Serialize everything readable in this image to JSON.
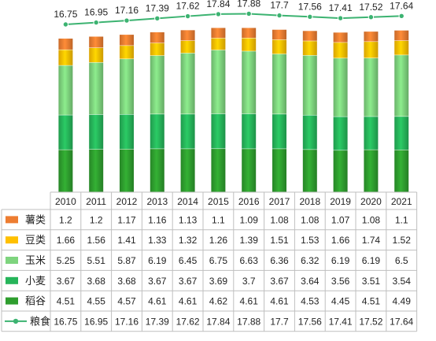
{
  "chart_data": {
    "type": "bar",
    "stacked": true,
    "categories": [
      "2010",
      "2011",
      "2012",
      "2013",
      "2014",
      "2015",
      "2016",
      "2017",
      "2018",
      "2019",
      "2020",
      "2021"
    ],
    "series": [
      {
        "name": "稻谷",
        "key": "rice",
        "color": "#2e9e2e",
        "values": [
          4.51,
          4.55,
          4.57,
          4.61,
          4.61,
          4.62,
          4.61,
          4.61,
          4.53,
          4.45,
          4.51,
          4.49
        ]
      },
      {
        "name": "小麦",
        "key": "wheat",
        "color": "#26b55a",
        "values": [
          3.67,
          3.68,
          3.68,
          3.67,
          3.67,
          3.69,
          3.7,
          3.67,
          3.64,
          3.56,
          3.51,
          3.54
        ]
      },
      {
        "name": "玉米",
        "key": "corn",
        "color": "#7ed47e",
        "values": [
          5.25,
          5.51,
          5.87,
          6.19,
          6.45,
          6.75,
          6.63,
          6.36,
          6.32,
          6.19,
          6.19,
          6.5
        ]
      },
      {
        "name": "豆类",
        "key": "beans",
        "color": "#ffc000",
        "values": [
          1.66,
          1.56,
          1.41,
          1.33,
          1.32,
          1.26,
          1.39,
          1.51,
          1.53,
          1.66,
          1.74,
          1.52
        ]
      },
      {
        "name": "薯类",
        "key": "tubers",
        "color": "#ed7d31",
        "values": [
          1.2,
          1.2,
          1.17,
          1.16,
          1.13,
          1.1,
          1.09,
          1.08,
          1.08,
          1.07,
          1.08,
          1.1
        ]
      }
    ],
    "line": {
      "name": "粮食",
      "color": "#3cb371",
      "values": [
        16.75,
        16.95,
        17.16,
        17.39,
        17.62,
        17.84,
        17.88,
        17.7,
        17.56,
        17.41,
        17.52,
        17.64
      ]
    },
    "table_row_order": [
      "tubers",
      "beans",
      "corn",
      "wheat",
      "rice"
    ],
    "ylim": [
      0,
      18.6
    ],
    "grid": false,
    "legend_placement": "data-table-left"
  }
}
